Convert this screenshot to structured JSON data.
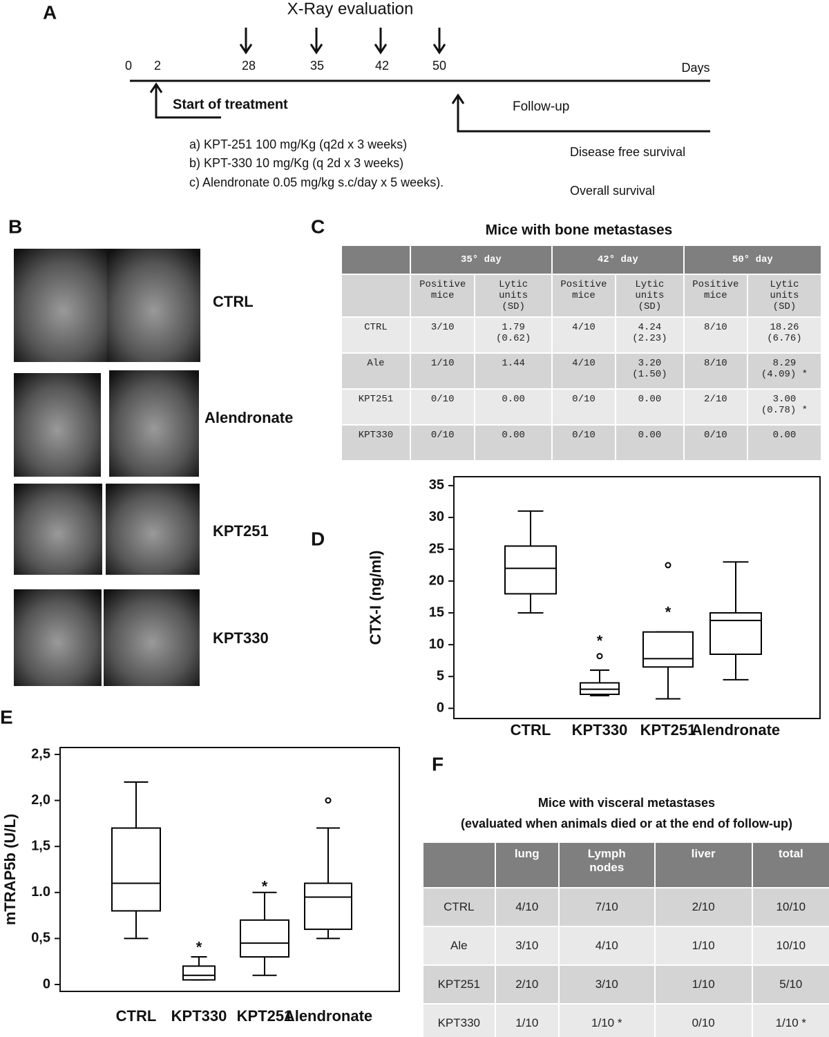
{
  "panel_a": {
    "label": "A",
    "title": "X-Ray evaluation",
    "days": [
      "0",
      "2",
      "28",
      "35",
      "42",
      "50"
    ],
    "days_unit": "Days",
    "start": "Start of treatment",
    "follow_up": "Follow-up",
    "treatments": [
      "a) KPT-251  100 mg/Kg (q2d x 3 weeks)",
      "b) KPT-330   10 mg/Kg (q 2d x 3 weeks)",
      "c) Alendronate  0.05 mg/kg s.c/day x 5 weeks)."
    ],
    "outcomes": [
      "Disease free survival",
      "Overall survival"
    ]
  },
  "panel_b": {
    "label": "B",
    "groups": [
      "CTRL",
      "Alendronate",
      "KPT251",
      "KPT330"
    ]
  },
  "panel_c": {
    "label": "C",
    "title": "Mice with bone metastases",
    "header": [
      "35° day",
      "42° day",
      "50° day"
    ],
    "subheader": [
      "Positive mice",
      "Lytic units (SD)",
      "Positive mice",
      "Lytic units (SD)",
      "Positive mice",
      "Lytic units (SD)"
    ],
    "rows": [
      [
        "CTRL",
        "3/10",
        "1.79 (0.62)",
        "4/10",
        "4.24 (2.23)",
        "8/10",
        "18.26 (6.76)"
      ],
      [
        "Ale",
        "1/10",
        "1.44",
        "4/10",
        "3.20 (1.50)",
        "8/10",
        "8.29 (4.09) *"
      ],
      [
        "KPT251",
        "0/10",
        "0.00",
        "0/10",
        "0.00",
        "2/10",
        "3.00 (0.78) *"
      ],
      [
        "KPT330",
        "0/10",
        "0.00",
        "0/10",
        "0.00",
        "0/10",
        "0.00"
      ]
    ]
  },
  "panel_f": {
    "label": "F",
    "title": [
      "Mice with visceral metastases",
      "(evaluated when animals died or at the end of follow-up)"
    ],
    "header": [
      "lung",
      "Lymph nodes",
      "liver",
      "total"
    ],
    "rows": [
      [
        "CTRL",
        "4/10",
        "7/10",
        "2/10",
        "10/10"
      ],
      [
        "Ale",
        "3/10",
        "4/10",
        "1/10",
        "10/10"
      ],
      [
        "KPT251",
        "2/10",
        "3/10",
        "1/10",
        "5/10"
      ],
      [
        "KPT330",
        "1/10",
        "1/10 *",
        "0/10",
        "1/10 *"
      ]
    ]
  },
  "chart_data": [
    {
      "type": "box",
      "panel_label": "D",
      "ylabel": "CTX-I (ng/ml)",
      "categories": [
        "CTRL",
        "KPT330",
        "KPT251",
        "Alendronate"
      ],
      "ylim": [
        -1.6,
        36.4
      ],
      "yticks": [
        0,
        5,
        10,
        15,
        20,
        25,
        30,
        35
      ],
      "color": "#000000",
      "extreme_marker": "*",
      "boxes": [
        {
          "whisker_low": 15,
          "q1": 18,
          "median": 22,
          "q3": 25.5,
          "whisker_high": 31,
          "outliers": [],
          "extremes": []
        },
        {
          "whisker_low": 2,
          "q1": 2.2,
          "median": 3,
          "q3": 4,
          "whisker_high": 6,
          "outliers": [
            8.2
          ],
          "extremes": [
            11
          ]
        },
        {
          "whisker_low": 1.5,
          "q1": 6.5,
          "median": 7.8,
          "q3": 12,
          "whisker_high": 12,
          "outliers": [
            22.5
          ],
          "extremes": [
            15.5
          ]
        },
        {
          "whisker_low": 4.5,
          "q1": 8.5,
          "median": 13.8,
          "q3": 15,
          "whisker_high": 23,
          "outliers": [],
          "extremes": []
        }
      ]
    },
    {
      "type": "box",
      "panel_label": "E",
      "ylabel": "mTRAP5b (U/L)",
      "categories": [
        "CTRL",
        "KPT330",
        "KPT251",
        "Alendronate"
      ],
      "ylim": [
        -0.075,
        2.575
      ],
      "yticks": [
        0,
        {
          "value": 0.5,
          "label": "0,5"
        },
        {
          "value": 1,
          "label": "1.0"
        },
        {
          "value": 1.5,
          "label": "1,5"
        },
        {
          "value": 2,
          "label": "2,0"
        },
        {
          "value": 2.5,
          "label": "2,5"
        }
      ],
      "color": "#000000",
      "extreme_marker": "*",
      "boxes": [
        {
          "whisker_low": 0.5,
          "q1": 0.8,
          "median": 1.1,
          "q3": 1.7,
          "whisker_high": 2.2,
          "outliers": [],
          "extremes": []
        },
        {
          "whisker_low": 0.05,
          "q1": 0.05,
          "median": 0.1,
          "q3": 0.2,
          "whisker_high": 0.3,
          "outliers": [],
          "extremes": [
            0.43
          ]
        },
        {
          "whisker_low": 0.1,
          "q1": 0.3,
          "median": 0.45,
          "q3": 0.7,
          "whisker_high": 1.0,
          "outliers": [],
          "extremes": [
            1.09
          ]
        },
        {
          "whisker_low": 0.5,
          "q1": 0.6,
          "median": 0.95,
          "q3": 1.1,
          "whisker_high": 1.7,
          "outliers": [
            2.0
          ],
          "extremes": []
        }
      ]
    }
  ]
}
